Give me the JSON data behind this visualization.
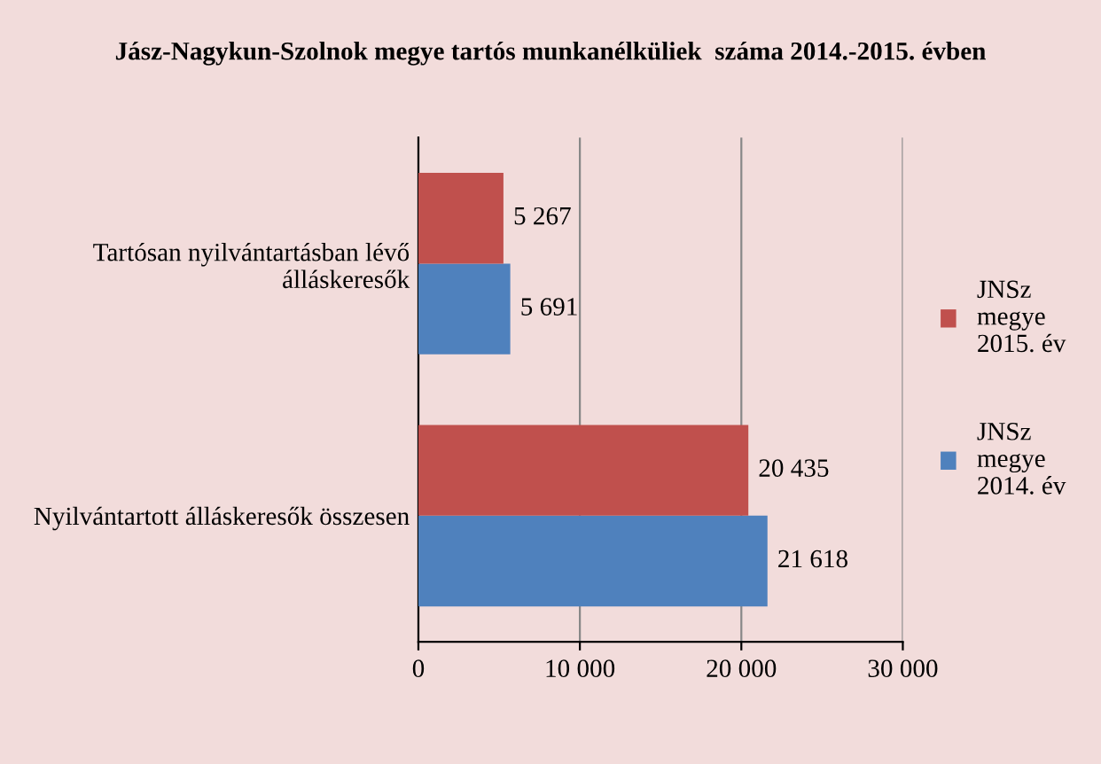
{
  "chart_data": {
    "type": "bar",
    "orientation": "horizontal",
    "title": "Jász-Nagykun-Szolnok megye tartós munkanélküliek  száma 2014.-2015. évben",
    "categories": [
      "Tartósan nyilvántartásban lévő\nálláskeresők",
      "Nyilvántartott álláskeresők összesen"
    ],
    "series": [
      {
        "name": "JNSz\nmegye\n2014. év",
        "color": "#4f81bd",
        "values": [
          5691,
          21618
        ],
        "value_labels": [
          "5 691",
          "21 618"
        ]
      },
      {
        "name": "JNSz\nmegye\n2015. év",
        "color": "#c0504d",
        "values": [
          5267,
          20435
        ],
        "value_labels": [
          "5 267",
          "20 435"
        ]
      }
    ],
    "xlim": [
      0,
      30000
    ],
    "xticks": [
      {
        "value": 0,
        "label": "0"
      },
      {
        "value": 10000,
        "label": "10 000"
      },
      {
        "value": 20000,
        "label": "20 000"
      },
      {
        "value": 30000,
        "label": "30 000"
      }
    ],
    "grid": "x",
    "legend": "right"
  }
}
